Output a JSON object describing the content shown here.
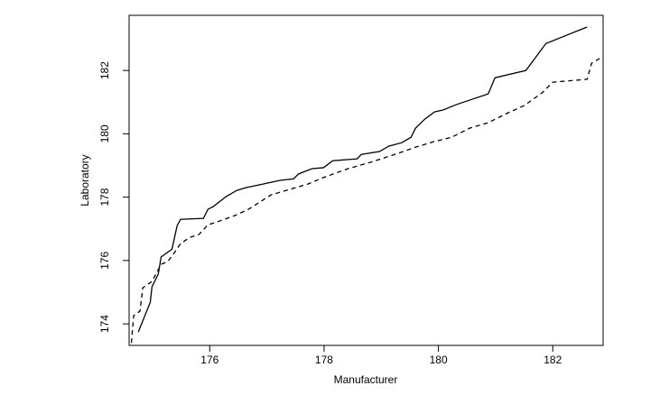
{
  "chart_data": {
    "type": "line",
    "x_label": "Manufacturer",
    "y_label": "Laboratory",
    "xlim": [
      174.59,
      182.88
    ],
    "ylim": [
      173.32,
      183.74
    ],
    "xticks": [
      176,
      178,
      180,
      182
    ],
    "yticks": [
      174,
      176,
      178,
      180,
      182
    ],
    "grid": false,
    "series": [
      {
        "color": "#000000",
        "line_style": "solid",
        "x": [
          174.75,
          174.96,
          174.99,
          175.1,
          175.15,
          175.34,
          175.43,
          175.49,
          175.89,
          175.97,
          176.06,
          176.28,
          176.47,
          176.63,
          176.92,
          177.23,
          177.47,
          177.55,
          177.79,
          177.99,
          178.15,
          178.58,
          178.65,
          178.97,
          179.13,
          179.36,
          179.52,
          179.6,
          179.76,
          179.93,
          180.08,
          180.31,
          180.87,
          180.99,
          181.53,
          181.88,
          182.6
        ],
        "values": [
          173.74,
          174.68,
          175.17,
          175.57,
          176.11,
          176.36,
          177.1,
          177.3,
          177.33,
          177.62,
          177.7,
          178.01,
          178.21,
          178.3,
          178.41,
          178.53,
          178.58,
          178.73,
          178.9,
          178.93,
          179.15,
          179.21,
          179.35,
          179.44,
          179.61,
          179.72,
          179.89,
          180.18,
          180.46,
          180.69,
          180.75,
          180.92,
          181.26,
          181.77,
          182.0,
          182.85,
          183.37
        ]
      },
      {
        "color": "#000000",
        "line_style": "dashed",
        "x": [
          174.63,
          174.67,
          174.78,
          174.83,
          174.99,
          175.15,
          175.26,
          175.34,
          175.49,
          175.65,
          175.81,
          175.97,
          176.13,
          176.44,
          176.68,
          177.07,
          177.39,
          177.71,
          178.02,
          178.42,
          178.81,
          179.29,
          179.6,
          179.92,
          180.23,
          180.55,
          180.87,
          181.18,
          181.5,
          181.81,
          182.0,
          182.6,
          182.68,
          182.84
        ],
        "values": [
          173.4,
          174.26,
          174.4,
          175.14,
          175.34,
          175.88,
          175.96,
          176.14,
          176.53,
          176.73,
          176.82,
          177.13,
          177.22,
          177.42,
          177.62,
          178.07,
          178.24,
          178.41,
          178.64,
          178.9,
          179.1,
          179.38,
          179.58,
          179.75,
          179.89,
          180.18,
          180.35,
          180.63,
          180.89,
          181.29,
          181.63,
          181.72,
          182.23,
          182.4
        ]
      }
    ]
  }
}
